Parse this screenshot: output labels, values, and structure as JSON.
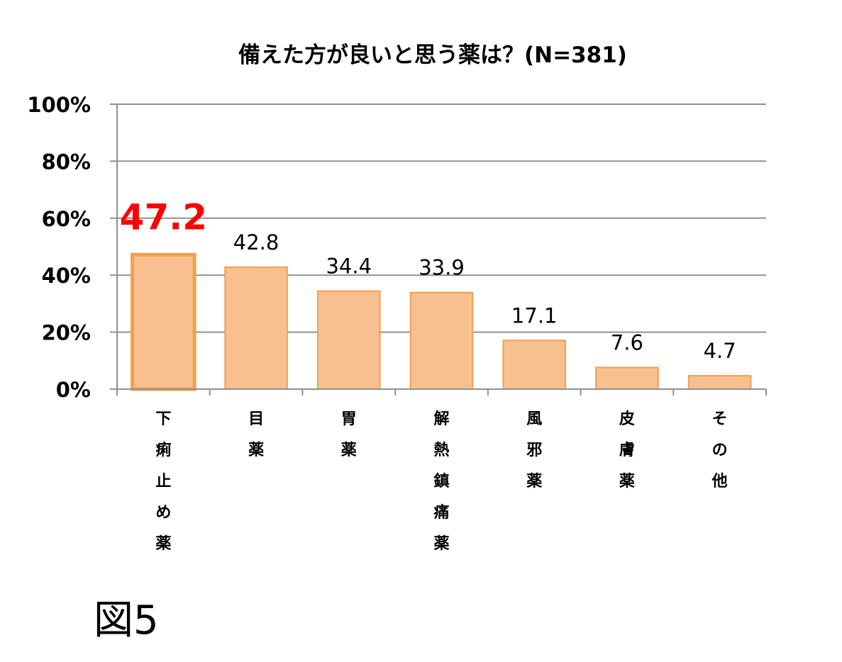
{
  "chart_data": {
    "type": "bar",
    "title": "備えた方が良いと思う薬は？(N=381)",
    "categories": [
      "下痢止め薬",
      "目薬",
      "胃薬",
      "解熱鎮痛薬",
      "風邪薬",
      "皮膚薬",
      "その他"
    ],
    "values": [
      47.2,
      42.8,
      34.4,
      33.9,
      17.1,
      7.6,
      4.7
    ],
    "data_labels": [
      "47.2",
      "42.8",
      "34.4",
      "33.9",
      "17.1",
      "7.6",
      "4.7"
    ],
    "highlight_index": 0,
    "yticks": [
      "0%",
      "20%",
      "40%",
      "60%",
      "80%",
      "100%"
    ],
    "ylim": [
      0,
      100
    ],
    "xlabel": "",
    "ylabel": "",
    "grid": true,
    "legend": "none",
    "colors": {
      "bar_fill": "#f8c08e",
      "bar_stroke": "#f0a050",
      "highlight_label": "#ff0000",
      "grid": "#909090"
    }
  },
  "figure_label": "図5"
}
